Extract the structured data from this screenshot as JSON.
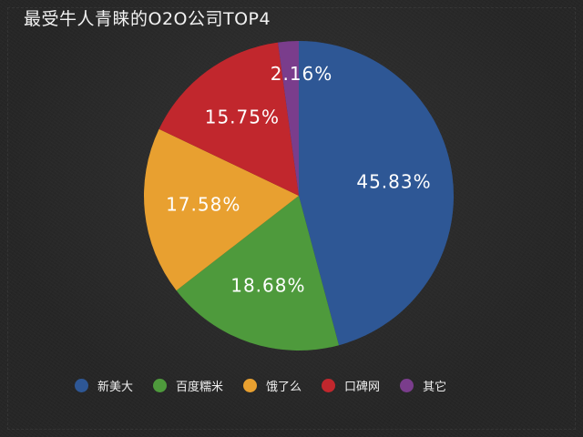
{
  "title": "最受牛人青睐的O2O公司TOP4",
  "colors": {
    "background": "#262626",
    "text": "#ffffff"
  },
  "chart_data": {
    "type": "pie",
    "title": "最受牛人青睐的O2O公司TOP4",
    "unit": "%",
    "start_angle_deg": 0,
    "direction": "clockwise",
    "legend_position": "bottom",
    "slices": [
      {
        "name": "新美大",
        "value": 45.83,
        "label": "45.83%",
        "color": "#2e5795"
      },
      {
        "name": "百度糯米",
        "value": 18.68,
        "label": "18.68%",
        "color": "#4e9a3c"
      },
      {
        "name": "饿了么",
        "value": 17.58,
        "label": "17.58%",
        "color": "#e8a030"
      },
      {
        "name": "口碑网",
        "value": 15.75,
        "label": "15.75%",
        "color": "#c1272d"
      },
      {
        "name": "其它",
        "value": 2.16,
        "label": "2.16%",
        "color": "#7a3d8c"
      }
    ]
  }
}
